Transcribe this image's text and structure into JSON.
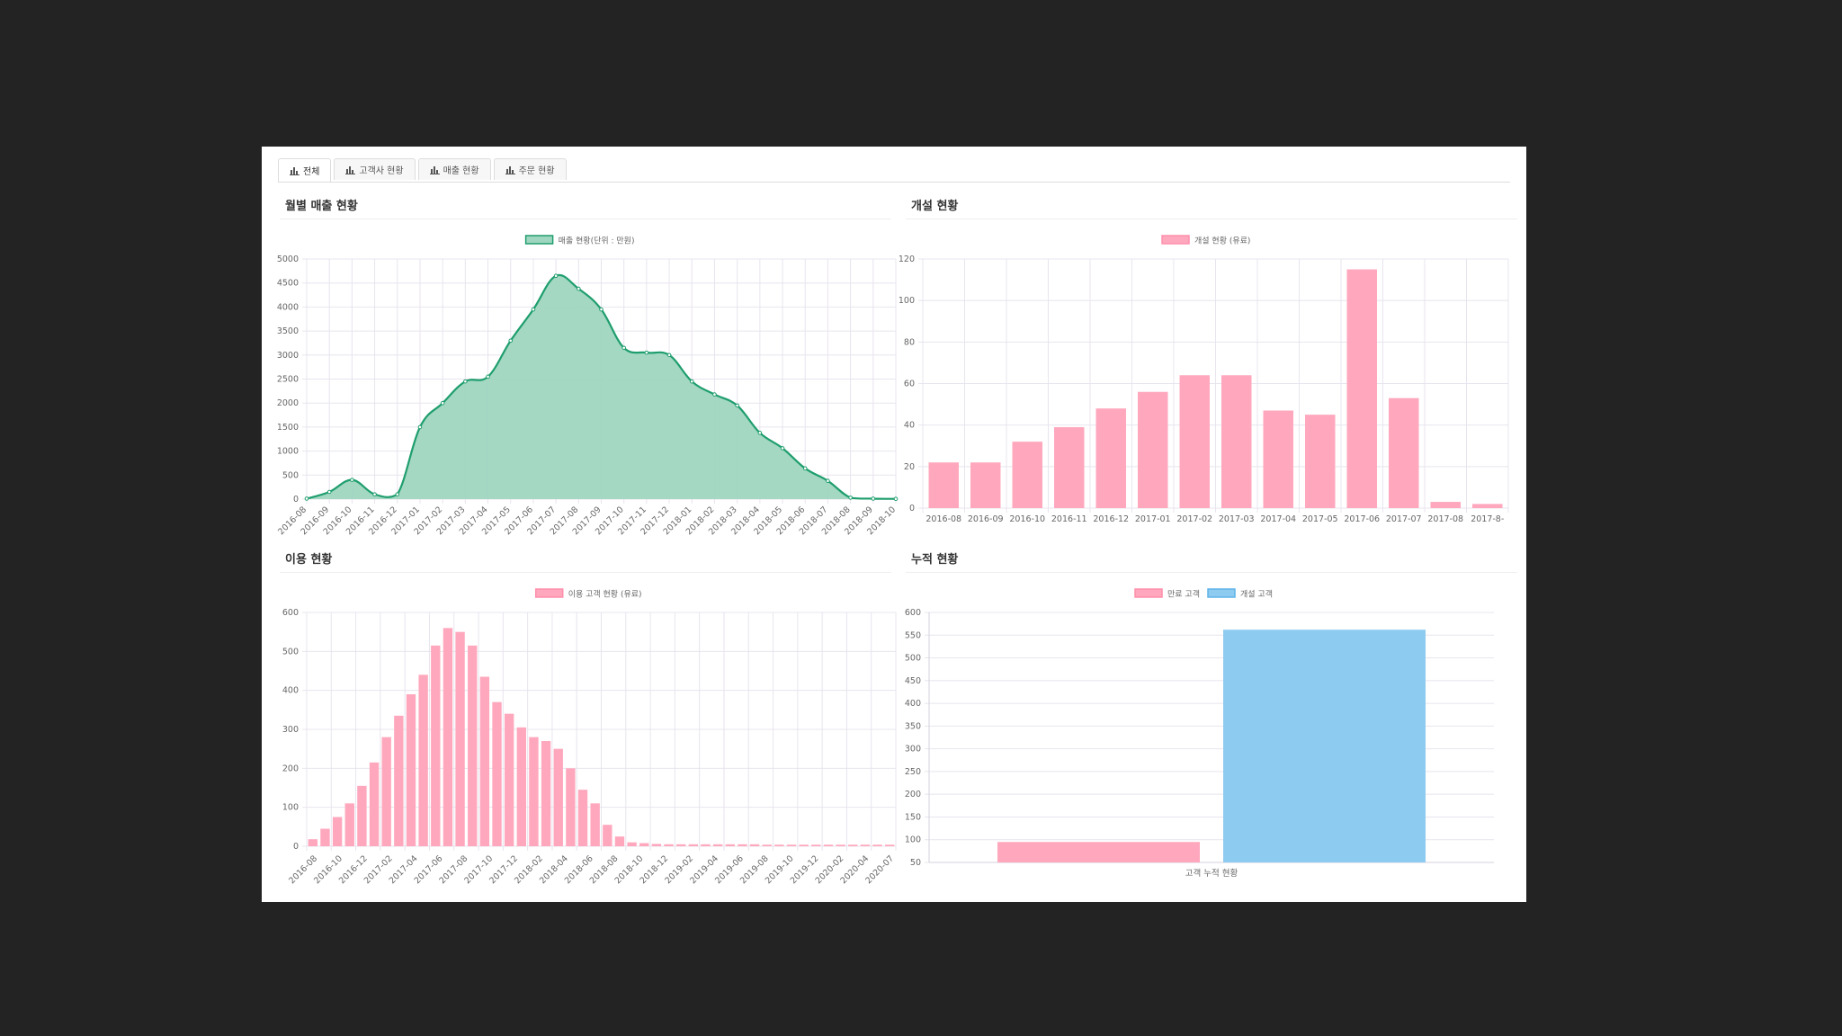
{
  "tabs": [
    {
      "label": "전체",
      "icon": "bar-chart-icon"
    },
    {
      "label": "고객사 현황",
      "icon": "bar-chart-icon"
    },
    {
      "label": "매출 현황",
      "icon": "bar-chart-icon"
    },
    {
      "label": "주문 현황",
      "icon": "bar-chart-icon"
    }
  ],
  "sections": {
    "monthly_sales": "월별 매출 현황",
    "openings": "개설 현황",
    "usage": "이용 현황",
    "cumulative": "누적 현황"
  },
  "colors": {
    "green_line": "#1f9e6e",
    "green_fill": "#9fd6c0",
    "pink": "#ffa8bd",
    "blue": "#8ecbf0",
    "grid": "#e8e4ee"
  },
  "chart_data": [
    {
      "type": "area",
      "legend": "매출 현황(단위 : 만원)",
      "categories": [
        "2016-08",
        "2016-09",
        "2016-10",
        "2016-11",
        "2016-12",
        "2017-01",
        "2017-02",
        "2017-03",
        "2017-04",
        "2017-05",
        "2017-06",
        "2017-07",
        "2017-08",
        "2017-09",
        "2017-10",
        "2017-11",
        "2017-12",
        "2018-01",
        "2018-02",
        "2018-03",
        "2018-04",
        "2018-05",
        "2018-06",
        "2018-07",
        "2018-08",
        "2018-09",
        "2018-10"
      ],
      "values": [
        10,
        150,
        400,
        100,
        100,
        1500,
        2000,
        2450,
        2550,
        3300,
        3950,
        4650,
        4380,
        3950,
        3150,
        3050,
        3000,
        2450,
        2180,
        1950,
        1380,
        1060,
        640,
        380,
        30,
        10,
        5
      ],
      "ylim": [
        0,
        5000
      ],
      "yticks": [
        0,
        500,
        1000,
        1500,
        2000,
        2500,
        3000,
        3500,
        4000,
        4500,
        5000
      ]
    },
    {
      "type": "bar",
      "legend": "개설 현황 (유료)",
      "categories": [
        "2016-08",
        "2016-09",
        "2016-10",
        "2016-11",
        "2016-12",
        "2017-01",
        "2017-02",
        "2017-03",
        "2017-04",
        "2017-05",
        "2017-06",
        "2017-07",
        "2017-08",
        "2017-8-"
      ],
      "values": [
        22,
        22,
        32,
        39,
        48,
        56,
        64,
        64,
        47,
        45,
        115,
        53,
        3,
        2
      ],
      "ylim": [
        0,
        120
      ],
      "yticks": [
        0,
        20,
        40,
        60,
        80,
        100,
        120
      ]
    },
    {
      "type": "bar",
      "legend": "이용 고객 현황 (유료)",
      "tick_labels": [
        "2016-08",
        "2016-10",
        "2016-12",
        "2017-02",
        "2017-04",
        "2017-06",
        "2017-08",
        "2017-10",
        "2017-12",
        "2018-02",
        "2018-04",
        "2018-06",
        "2018-08",
        "2018-10",
        "2018-12",
        "2019-02",
        "2019-04",
        "2019-06",
        "2019-08",
        "2019-10",
        "2019-12",
        "2020-02",
        "2020-04",
        "2020-07"
      ],
      "values": [
        18,
        45,
        75,
        110,
        155,
        215,
        280,
        335,
        390,
        440,
        515,
        560,
        550,
        515,
        435,
        370,
        340,
        305,
        280,
        270,
        250,
        200,
        145,
        110,
        55,
        25,
        10,
        8,
        6,
        5,
        5,
        5,
        5,
        5,
        5,
        5,
        5,
        4,
        4,
        4,
        4,
        4,
        4,
        4,
        4,
        4,
        4,
        4
      ],
      "ylim": [
        0,
        600
      ],
      "yticks": [
        0,
        100,
        200,
        300,
        400,
        500,
        600
      ]
    },
    {
      "type": "bar",
      "categories": [
        "고객 누적 현황"
      ],
      "series": [
        {
          "name": "만료 고객",
          "values": [
            95
          ]
        },
        {
          "name": "개설 고객",
          "values": [
            562
          ]
        }
      ],
      "ylim": [
        50,
        600
      ],
      "yticks": [
        50,
        100,
        150,
        200,
        250,
        300,
        350,
        400,
        450,
        500,
        550,
        600
      ]
    }
  ]
}
